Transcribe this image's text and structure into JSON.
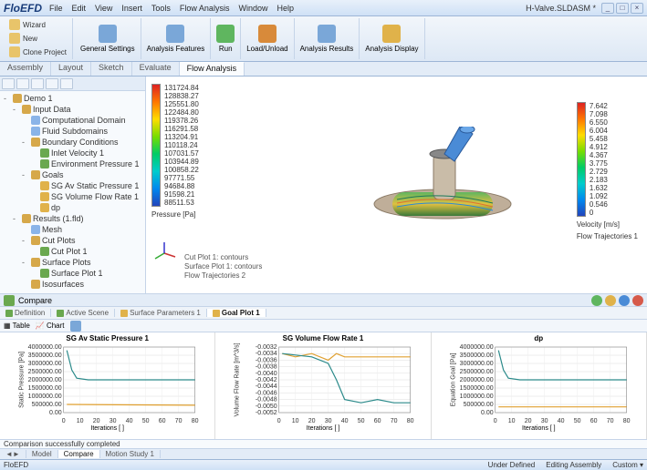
{
  "title_logo": "FloEFD",
  "document_name": "H-Valve.SLDASM *",
  "menu": [
    "File",
    "Edit",
    "View",
    "Insert",
    "Tools",
    "Flow Analysis",
    "Window",
    "Help"
  ],
  "window_controls": [
    "_",
    "□",
    "×"
  ],
  "ribbon": {
    "left": [
      {
        "label": "Wizard",
        "icon": "#e8c46a"
      },
      {
        "label": "New",
        "icon": "#e8c46a"
      },
      {
        "label": "Clone Project",
        "icon": "#e8c46a"
      }
    ],
    "groups": [
      {
        "label": "General Settings",
        "icon": "#7aa7d8"
      },
      {
        "label": "Analysis Features",
        "icon": "#7aa7d8"
      },
      {
        "label": "Run",
        "icon": "#5fb65f",
        "big": true
      },
      {
        "label": "Load/Unload",
        "icon": "#d88a3a",
        "big": true
      },
      {
        "label": "Analysis Results",
        "icon": "#7aa7d8"
      },
      {
        "label": "Analysis Display",
        "icon": "#e0b24a"
      }
    ]
  },
  "model_tabs": [
    "Assembly",
    "Layout",
    "Sketch",
    "Evaluate",
    "Flow Analysis"
  ],
  "active_model_tab": "Flow Analysis",
  "tree": [
    {
      "lvl": 0,
      "exp": "-",
      "icon": "#d6a84a",
      "label": "Demo 1"
    },
    {
      "lvl": 1,
      "exp": "-",
      "icon": "#d6a84a",
      "label": "Input Data"
    },
    {
      "lvl": 2,
      "exp": "",
      "icon": "#8ab4e8",
      "label": "Computational Domain"
    },
    {
      "lvl": 2,
      "exp": "",
      "icon": "#8ab4e8",
      "label": "Fluid Subdomains"
    },
    {
      "lvl": 2,
      "exp": "-",
      "icon": "#d6a84a",
      "label": "Boundary Conditions"
    },
    {
      "lvl": 3,
      "exp": "",
      "icon": "#6aa84f",
      "label": "Inlet Velocity 1"
    },
    {
      "lvl": 3,
      "exp": "",
      "icon": "#6aa84f",
      "label": "Environment Pressure 1"
    },
    {
      "lvl": 2,
      "exp": "-",
      "icon": "#d6a84a",
      "label": "Goals"
    },
    {
      "lvl": 3,
      "exp": "",
      "icon": "#e0b24a",
      "label": "SG Av Static Pressure 1"
    },
    {
      "lvl": 3,
      "exp": "",
      "icon": "#e0b24a",
      "label": "SG Volume Flow Rate 1"
    },
    {
      "lvl": 3,
      "exp": "",
      "icon": "#e0b24a",
      "label": "dp"
    },
    {
      "lvl": 1,
      "exp": "-",
      "icon": "#d6a84a",
      "label": "Results (1.fld)"
    },
    {
      "lvl": 2,
      "exp": "",
      "icon": "#8ab4e8",
      "label": "Mesh"
    },
    {
      "lvl": 2,
      "exp": "-",
      "icon": "#d6a84a",
      "label": "Cut Plots"
    },
    {
      "lvl": 3,
      "exp": "",
      "icon": "#6aa84f",
      "label": "Cut Plot 1"
    },
    {
      "lvl": 2,
      "exp": "-",
      "icon": "#d6a84a",
      "label": "Surface Plots"
    },
    {
      "lvl": 3,
      "exp": "",
      "icon": "#6aa84f",
      "label": "Surface Plot 1"
    },
    {
      "lvl": 2,
      "exp": "",
      "icon": "#d6a84a",
      "label": "Isosurfaces"
    }
  ],
  "pressure_legend": {
    "values": [
      "131724.84",
      "128838.27",
      "125551.80",
      "122484.80",
      "119378.26",
      "116291.58",
      "113204.91",
      "110118.24",
      "107031.57",
      "103944.89",
      "100858.22",
      "97771.55",
      "94684.88",
      "91598.21",
      "88511.53"
    ],
    "label": "Pressure [Pa]"
  },
  "velocity_legend": {
    "values": [
      "7.642",
      "7.098",
      "6.550",
      "6.004",
      "5.458",
      "4.912",
      "4.367",
      "3.775",
      "2.729",
      "2.183",
      "1.632",
      "1.092",
      "0.546",
      "0"
    ],
    "label": "Velocity [m/s]",
    "footer": "Flow Trajectories 1"
  },
  "plot_labels": [
    "Cut Plot 1: contours",
    "Surface Plot 1: contours",
    "Flow Trajectories 2"
  ],
  "compare_label": "Compare",
  "bottom_tabs": [
    {
      "label": "Definition",
      "icon": "#6aa84f"
    },
    {
      "label": "Active Scene",
      "icon": "#6aa84f"
    },
    {
      "label": "Surface Parameters 1",
      "icon": "#e0b24a"
    },
    {
      "label": "Goal Plot 1",
      "icon": "#e0b24a",
      "active": true
    }
  ],
  "chart_toolbar": [
    "Table",
    "Chart"
  ],
  "charts": [
    {
      "title": "SG Av Static Pressure 1",
      "ylabel": "Static Pressure [Pa]",
      "xlabel": "Iterations [ ]",
      "ylim": [
        0,
        4000000
      ],
      "yticks": [
        "4000000.00",
        "3500000.00",
        "3000000.00",
        "2500000.00",
        "2000000.00",
        "1500000.00",
        "1000000.00",
        "500000.00",
        "0.00"
      ],
      "xlim": [
        0,
        80
      ],
      "xticks": [
        0,
        10,
        20,
        30,
        40,
        50,
        60,
        70,
        80
      ],
      "series": [
        {
          "color": "#2b8a8a",
          "pts": [
            [
              2,
              3800000
            ],
            [
              5,
              2600000
            ],
            [
              8,
              2100000
            ],
            [
              15,
              2000000
            ],
            [
              80,
              2000000
            ]
          ]
        },
        {
          "color": "#e0a030",
          "pts": [
            [
              2,
              500000
            ],
            [
              80,
              450000
            ]
          ]
        }
      ]
    },
    {
      "title": "SG Volume Flow Rate 1",
      "ylabel": "Volume Flow Rate [m^3/s]",
      "xlabel": "Iterations [ ]",
      "ylim": [
        -0.0052,
        -0.0032
      ],
      "yticks": [
        "-0.0032",
        "-0.0034",
        "-0.0036",
        "-0.0038",
        "-0.0040",
        "-0.0042",
        "-0.0044",
        "-0.0046",
        "-0.0048",
        "-0.0050",
        "-0.0052"
      ],
      "xlim": [
        0,
        80
      ],
      "xticks": [
        0,
        10,
        20,
        30,
        40,
        50,
        60,
        70,
        80
      ],
      "series": [
        {
          "color": "#e0a030",
          "pts": [
            [
              2,
              -0.0034
            ],
            [
              10,
              -0.0035
            ],
            [
              20,
              -0.0034
            ],
            [
              30,
              -0.0036
            ],
            [
              35,
              -0.0034
            ],
            [
              40,
              -0.0035
            ],
            [
              80,
              -0.0035
            ]
          ]
        },
        {
          "color": "#2b8a8a",
          "pts": [
            [
              2,
              -0.0034
            ],
            [
              20,
              -0.0035
            ],
            [
              30,
              -0.0037
            ],
            [
              35,
              -0.0042
            ],
            [
              40,
              -0.0048
            ],
            [
              50,
              -0.0049
            ],
            [
              60,
              -0.0048
            ],
            [
              70,
              -0.0049
            ],
            [
              80,
              -0.0049
            ]
          ]
        }
      ]
    },
    {
      "title": "dp",
      "ylabel": "Equation Goal [Pa]",
      "xlabel": "Iterations [ ]",
      "ylim": [
        0,
        4000000
      ],
      "yticks": [
        "4000000.00",
        "3500000.00",
        "3000000.00",
        "2500000.00",
        "2000000.00",
        "1500000.00",
        "1000000.00",
        "500000.00",
        "0.00"
      ],
      "xlim": [
        0,
        80
      ],
      "xticks": [
        0,
        10,
        20,
        30,
        40,
        50,
        60,
        70,
        80
      ],
      "series": [
        {
          "color": "#2b8a8a",
          "pts": [
            [
              2,
              3800000
            ],
            [
              5,
              2600000
            ],
            [
              8,
              2100000
            ],
            [
              15,
              2000000
            ],
            [
              80,
              2000000
            ]
          ]
        },
        {
          "color": "#e0a030",
          "pts": [
            [
              2,
              350000
            ],
            [
              80,
              350000
            ]
          ]
        }
      ]
    }
  ],
  "status_msg": "Comparison successfully completed",
  "footer_tabs": [
    "",
    "Model",
    "Compare",
    "Motion Study 1"
  ],
  "active_footer_tab": "Compare",
  "statusbar": {
    "left": "FloEFD",
    "under": "Under Defined",
    "mode": "Editing Assembly",
    "custom": "Custom ▾"
  }
}
